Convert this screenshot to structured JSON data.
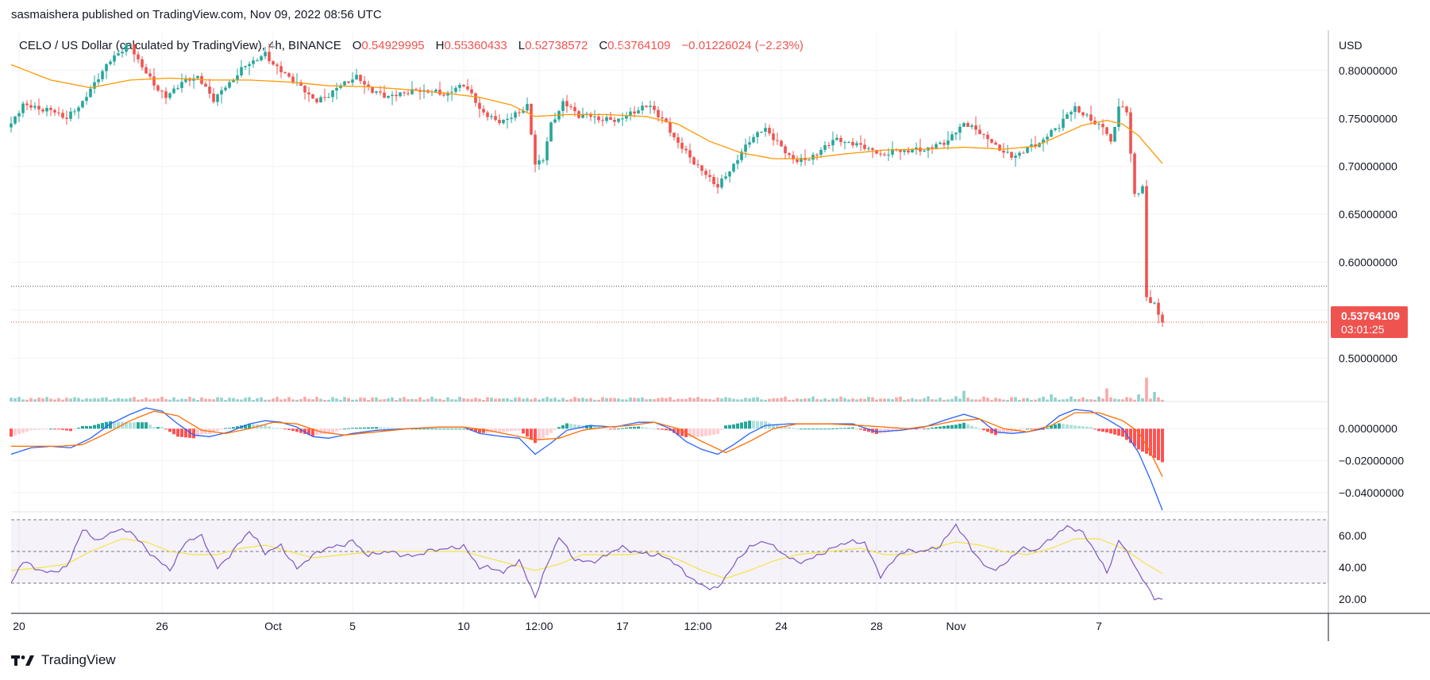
{
  "header": {
    "published": "sasmaishera published on TradingView.com, Nov 09, 2022 08:56 UTC"
  },
  "legend": {
    "symbol": "CELO / US Dollar (calculated by TradingView), 4h, BINANCE",
    "open_label": "O",
    "open": "0.54929995",
    "high_label": "H",
    "high": "0.55360433",
    "low_label": "L",
    "low": "0.52738572",
    "close_label": "C",
    "close": "0.53764109",
    "change": "−0.01226024 (−2.23%)"
  },
  "price_badge": {
    "price": "0.53764109",
    "countdown": "03:01:25"
  },
  "footer": {
    "brand": "TradingView"
  },
  "colors": {
    "up": "#26a69a",
    "down": "#ef5350",
    "ma": "#ff9800",
    "macd": "#2962ff",
    "signal": "#ff6d00",
    "rsi": "#7e57c2",
    "rsi_ma": "#f5e342"
  },
  "chart_data": {
    "type": "candlestick",
    "currency_label": "USD",
    "price_axis": {
      "ticks": [
        "0.80000000",
        "0.75000000",
        "0.70000000",
        "0.65000000",
        "0.60000000",
        "0.55000000",
        "0.50000000"
      ],
      "range": [
        0.455,
        0.842
      ]
    },
    "macd_axis": {
      "ticks": [
        "0.00000000",
        "−0.02000000",
        "−0.04000000"
      ],
      "range": [
        -0.052,
        0.017
      ]
    },
    "rsi_axis": {
      "ticks": [
        "60.00",
        "40.00",
        "20.00"
      ],
      "range": [
        11,
        75
      ],
      "bands": [
        30,
        50,
        70
      ]
    },
    "x_ticks": [
      {
        "label": "20",
        "i": 2
      },
      {
        "label": "26",
        "i": 38
      },
      {
        "label": "Oct",
        "i": 66
      },
      {
        "label": "5",
        "i": 86
      },
      {
        "label": "10",
        "i": 114
      },
      {
        "label": "12:00",
        "i": 133
      },
      {
        "label": "17",
        "i": 154
      },
      {
        "label": "12:00",
        "i": 173
      },
      {
        "label": "24",
        "i": 194
      },
      {
        "label": "28",
        "i": 218
      },
      {
        "label": "Nov",
        "i": 238
      },
      {
        "label": "7",
        "i": 274
      }
    ],
    "price_key_points": [
      [
        0,
        0.742
      ],
      [
        3,
        0.768
      ],
      [
        8,
        0.76
      ],
      [
        14,
        0.748
      ],
      [
        18,
        0.77
      ],
      [
        22,
        0.795
      ],
      [
        26,
        0.812
      ],
      [
        30,
        0.826
      ],
      [
        34,
        0.8
      ],
      [
        39,
        0.77
      ],
      [
        43,
        0.785
      ],
      [
        47,
        0.796
      ],
      [
        51,
        0.772
      ],
      [
        55,
        0.784
      ],
      [
        60,
        0.808
      ],
      [
        64,
        0.82
      ],
      [
        68,
        0.798
      ],
      [
        73,
        0.78
      ],
      [
        77,
        0.77
      ],
      [
        82,
        0.782
      ],
      [
        87,
        0.79
      ],
      [
        91,
        0.78
      ],
      [
        97,
        0.774
      ],
      [
        102,
        0.776
      ],
      [
        106,
        0.78
      ],
      [
        110,
        0.778
      ],
      [
        114,
        0.784
      ],
      [
        118,
        0.758
      ],
      [
        122,
        0.75
      ],
      [
        126,
        0.752
      ],
      [
        130,
        0.76
      ],
      [
        132,
        0.7
      ],
      [
        134,
        0.708
      ],
      [
        136,
        0.745
      ],
      [
        139,
        0.77
      ],
      [
        143,
        0.752
      ],
      [
        148,
        0.748
      ],
      [
        153,
        0.752
      ],
      [
        158,
        0.758
      ],
      [
        161,
        0.76
      ],
      [
        165,
        0.745
      ],
      [
        170,
        0.716
      ],
      [
        174,
        0.692
      ],
      [
        178,
        0.678
      ],
      [
        182,
        0.705
      ],
      [
        186,
        0.728
      ],
      [
        190,
        0.736
      ],
      [
        194,
        0.72
      ],
      [
        198,
        0.708
      ],
      [
        203,
        0.71
      ],
      [
        207,
        0.726
      ],
      [
        211,
        0.728
      ],
      [
        215,
        0.722
      ],
      [
        219,
        0.708
      ],
      [
        223,
        0.716
      ],
      [
        227,
        0.72
      ],
      [
        232,
        0.718
      ],
      [
        236,
        0.724
      ],
      [
        240,
        0.748
      ],
      [
        244,
        0.738
      ],
      [
        248,
        0.718
      ],
      [
        252,
        0.708
      ],
      [
        256,
        0.722
      ],
      [
        260,
        0.728
      ],
      [
        264,
        0.74
      ],
      [
        268,
        0.762
      ],
      [
        271,
        0.754
      ],
      [
        275,
        0.742
      ],
      [
        277,
        0.722
      ],
      [
        279,
        0.76
      ],
      [
        281,
        0.755
      ],
      [
        282,
        0.712
      ],
      [
        283,
        0.672
      ],
      [
        285,
        0.68
      ],
      [
        286,
        0.565
      ],
      [
        288,
        0.56
      ],
      [
        289,
        0.547
      ],
      [
        290,
        0.538
      ]
    ],
    "price_extremes": {
      "max": 0.827,
      "min": 0.537
    },
    "last_price": 0.53764109,
    "last_close_line": 0.53764109,
    "prev_close_line": 0.575,
    "ma_key_points": [
      [
        0,
        0.806
      ],
      [
        10,
        0.79
      ],
      [
        20,
        0.782
      ],
      [
        30,
        0.79
      ],
      [
        40,
        0.792
      ],
      [
        50,
        0.79
      ],
      [
        60,
        0.79
      ],
      [
        70,
        0.788
      ],
      [
        80,
        0.784
      ],
      [
        90,
        0.783
      ],
      [
        100,
        0.78
      ],
      [
        110,
        0.776
      ],
      [
        118,
        0.772
      ],
      [
        126,
        0.764
      ],
      [
        132,
        0.752
      ],
      [
        140,
        0.754
      ],
      [
        150,
        0.754
      ],
      [
        160,
        0.752
      ],
      [
        168,
        0.744
      ],
      [
        176,
        0.726
      ],
      [
        184,
        0.714
      ],
      [
        192,
        0.708
      ],
      [
        200,
        0.708
      ],
      [
        210,
        0.713
      ],
      [
        220,
        0.717
      ],
      [
        230,
        0.718
      ],
      [
        240,
        0.72
      ],
      [
        250,
        0.718
      ],
      [
        258,
        0.721
      ],
      [
        264,
        0.732
      ],
      [
        270,
        0.743
      ],
      [
        276,
        0.748
      ],
      [
        280,
        0.744
      ],
      [
        284,
        0.732
      ],
      [
        290,
        0.703
      ]
    ],
    "macd_key_points": [
      [
        0,
        -0.016
      ],
      [
        5,
        -0.012
      ],
      [
        10,
        -0.011
      ],
      [
        15,
        -0.012
      ],
      [
        20,
        -0.006
      ],
      [
        25,
        0.003
      ],
      [
        30,
        0.009
      ],
      [
        34,
        0.013
      ],
      [
        38,
        0.011
      ],
      [
        42,
        0.003
      ],
      [
        46,
        -0.004
      ],
      [
        50,
        -0.005
      ],
      [
        55,
        -0.002
      ],
      [
        60,
        0.003
      ],
      [
        64,
        0.005
      ],
      [
        68,
        0.004
      ],
      [
        72,
        0.001
      ],
      [
        76,
        -0.005
      ],
      [
        80,
        -0.006
      ],
      [
        86,
        -0.003
      ],
      [
        92,
        -0.001
      ],
      [
        100,
        0.0
      ],
      [
        108,
        0.001
      ],
      [
        114,
        0.001
      ],
      [
        118,
        -0.003
      ],
      [
        124,
        -0.005
      ],
      [
        128,
        -0.006
      ],
      [
        132,
        -0.016
      ],
      [
        136,
        -0.009
      ],
      [
        140,
        -0.001
      ],
      [
        146,
        0.002
      ],
      [
        152,
        0.001
      ],
      [
        158,
        0.004
      ],
      [
        162,
        0.004
      ],
      [
        166,
        0.0
      ],
      [
        170,
        -0.008
      ],
      [
        174,
        -0.013
      ],
      [
        178,
        -0.016
      ],
      [
        182,
        -0.01
      ],
      [
        186,
        -0.003
      ],
      [
        190,
        0.002
      ],
      [
        196,
        0.003
      ],
      [
        200,
        0.003
      ],
      [
        206,
        0.003
      ],
      [
        212,
        0.003
      ],
      [
        218,
        -0.002
      ],
      [
        224,
        -0.001
      ],
      [
        230,
        0.001
      ],
      [
        236,
        0.006
      ],
      [
        240,
        0.009
      ],
      [
        244,
        0.006
      ],
      [
        248,
        -0.002
      ],
      [
        252,
        -0.003
      ],
      [
        256,
        -0.002
      ],
      [
        260,
        0.0
      ],
      [
        264,
        0.008
      ],
      [
        268,
        0.012
      ],
      [
        272,
        0.011
      ],
      [
        276,
        0.006
      ],
      [
        280,
        0.0
      ],
      [
        284,
        -0.015
      ],
      [
        287,
        -0.032
      ],
      [
        290,
        -0.051
      ]
    ],
    "signal_key_points": [
      [
        0,
        -0.011
      ],
      [
        6,
        -0.011
      ],
      [
        12,
        -0.011
      ],
      [
        18,
        -0.01
      ],
      [
        24,
        -0.003
      ],
      [
        30,
        0.005
      ],
      [
        36,
        0.011
      ],
      [
        42,
        0.008
      ],
      [
        48,
        -0.001
      ],
      [
        54,
        -0.003
      ],
      [
        60,
        0.0
      ],
      [
        66,
        0.004
      ],
      [
        72,
        0.003
      ],
      [
        78,
        -0.002
      ],
      [
        84,
        -0.004
      ],
      [
        92,
        -0.002
      ],
      [
        100,
        0.0
      ],
      [
        108,
        0.001
      ],
      [
        114,
        0.001
      ],
      [
        120,
        -0.001
      ],
      [
        126,
        -0.004
      ],
      [
        132,
        -0.007
      ],
      [
        138,
        -0.006
      ],
      [
        144,
        -0.001
      ],
      [
        150,
        0.001
      ],
      [
        156,
        0.002
      ],
      [
        162,
        0.004
      ],
      [
        168,
        0.0
      ],
      [
        174,
        -0.008
      ],
      [
        180,
        -0.015
      ],
      [
        186,
        -0.008
      ],
      [
        192,
        0.0
      ],
      [
        198,
        0.003
      ],
      [
        206,
        0.003
      ],
      [
        214,
        0.002
      ],
      [
        220,
        0.001
      ],
      [
        226,
        0.0
      ],
      [
        232,
        0.002
      ],
      [
        238,
        0.005
      ],
      [
        244,
        0.006
      ],
      [
        250,
        0.0
      ],
      [
        256,
        -0.002
      ],
      [
        262,
        0.002
      ],
      [
        268,
        0.01
      ],
      [
        274,
        0.01
      ],
      [
        280,
        0.005
      ],
      [
        284,
        -0.002
      ],
      [
        287,
        -0.015
      ],
      [
        290,
        -0.03
      ]
    ],
    "rsi_key_points": [
      [
        0,
        30
      ],
      [
        3,
        42
      ],
      [
        8,
        38
      ],
      [
        14,
        40
      ],
      [
        18,
        62
      ],
      [
        22,
        57
      ],
      [
        26,
        65
      ],
      [
        30,
        62
      ],
      [
        34,
        50
      ],
      [
        40,
        40
      ],
      [
        44,
        56
      ],
      [
        48,
        58
      ],
      [
        52,
        40
      ],
      [
        56,
        52
      ],
      [
        60,
        62
      ],
      [
        64,
        48
      ],
      [
        68,
        55
      ],
      [
        72,
        40
      ],
      [
        76,
        46
      ],
      [
        80,
        52
      ],
      [
        86,
        58
      ],
      [
        90,
        46
      ],
      [
        96,
        50
      ],
      [
        102,
        48
      ],
      [
        108,
        50
      ],
      [
        114,
        55
      ],
      [
        118,
        40
      ],
      [
        124,
        36
      ],
      [
        128,
        46
      ],
      [
        132,
        22
      ],
      [
        135,
        40
      ],
      [
        138,
        58
      ],
      [
        142,
        46
      ],
      [
        148,
        44
      ],
      [
        154,
        52
      ],
      [
        160,
        50
      ],
      [
        165,
        45
      ],
      [
        170,
        36
      ],
      [
        174,
        30
      ],
      [
        178,
        26
      ],
      [
        182,
        40
      ],
      [
        186,
        54
      ],
      [
        190,
        58
      ],
      [
        194,
        48
      ],
      [
        198,
        42
      ],
      [
        204,
        50
      ],
      [
        210,
        54
      ],
      [
        215,
        56
      ],
      [
        219,
        36
      ],
      [
        224,
        48
      ],
      [
        229,
        50
      ],
      [
        234,
        55
      ],
      [
        238,
        66
      ],
      [
        242,
        50
      ],
      [
        246,
        40
      ],
      [
        250,
        42
      ],
      [
        254,
        50
      ],
      [
        258,
        50
      ],
      [
        262,
        60
      ],
      [
        266,
        66
      ],
      [
        270,
        60
      ],
      [
        273,
        50
      ],
      [
        276,
        38
      ],
      [
        279,
        58
      ],
      [
        282,
        46
      ],
      [
        284,
        34
      ],
      [
        286,
        28
      ],
      [
        288,
        20
      ],
      [
        290,
        20
      ]
    ],
    "rsi_ma_key_points": [
      [
        0,
        38
      ],
      [
        8,
        40
      ],
      [
        14,
        42
      ],
      [
        20,
        50
      ],
      [
        28,
        58
      ],
      [
        34,
        56
      ],
      [
        40,
        50
      ],
      [
        46,
        48
      ],
      [
        52,
        48
      ],
      [
        58,
        52
      ],
      [
        64,
        54
      ],
      [
        70,
        50
      ],
      [
        76,
        46
      ],
      [
        84,
        48
      ],
      [
        92,
        50
      ],
      [
        100,
        50
      ],
      [
        108,
        50
      ],
      [
        114,
        50
      ],
      [
        120,
        46
      ],
      [
        126,
        42
      ],
      [
        132,
        38
      ],
      [
        138,
        42
      ],
      [
        144,
        48
      ],
      [
        150,
        48
      ],
      [
        156,
        48
      ],
      [
        162,
        50
      ],
      [
        168,
        45
      ],
      [
        174,
        38
      ],
      [
        180,
        33
      ],
      [
        186,
        38
      ],
      [
        192,
        44
      ],
      [
        198,
        48
      ],
      [
        206,
        50
      ],
      [
        214,
        52
      ],
      [
        220,
        48
      ],
      [
        226,
        48
      ],
      [
        232,
        52
      ],
      [
        238,
        56
      ],
      [
        244,
        54
      ],
      [
        250,
        50
      ],
      [
        256,
        48
      ],
      [
        262,
        52
      ],
      [
        268,
        58
      ],
      [
        274,
        58
      ],
      [
        280,
        52
      ],
      [
        286,
        42
      ],
      [
        290,
        36
      ]
    ],
    "volume_spikes": [
      [
        240,
        0.45
      ],
      [
        262,
        0.3
      ],
      [
        276,
        0.55
      ],
      [
        284,
        0.3
      ],
      [
        286,
        1.0
      ],
      [
        288,
        0.4
      ]
    ]
  }
}
